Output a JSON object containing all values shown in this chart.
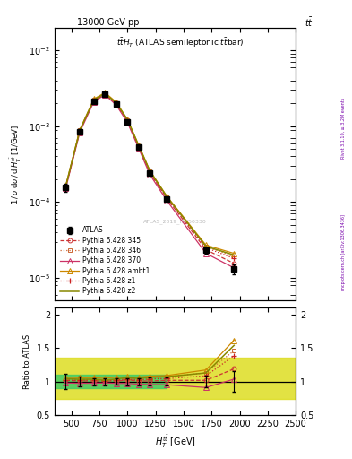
{
  "header_left": "13000 GeV pp",
  "header_right": "t$\\bar{t}$",
  "watermark": "ATLAS_2019_I1750330",
  "rivet_text": "Rivet 3.1.10, ≥ 3.2M events",
  "arxiv_text": "mcplots.cern.ch [arXiv:1306.3436]",
  "xlim": [
    350,
    2500
  ],
  "ylim_main": [
    5e-06,
    0.02
  ],
  "ylim_ratio": [
    0.5,
    2.1
  ],
  "x_data": [
    450,
    575,
    700,
    800,
    900,
    1000,
    1100,
    1200,
    1350,
    1700,
    1950
  ],
  "atlas_y": [
    0.000155,
    0.00085,
    0.00215,
    0.00265,
    0.00195,
    0.00115,
    0.00053,
    0.00024,
    0.00011,
    2.3e-05,
    1.3e-05
  ],
  "atlas_yerr": [
    1.8e-05,
    6e-05,
    0.00011,
    0.00014,
    9e-05,
    6e-05,
    2.8e-05,
    1.4e-05,
    6.5e-06,
    2e-06,
    2e-06
  ],
  "py345_y": [
    0.000158,
    0.00086,
    0.00218,
    0.00267,
    0.00197,
    0.00117,
    0.000535,
    0.000242,
    0.000112,
    2.35e-05,
    1.55e-05
  ],
  "py346_y": [
    0.000162,
    0.00088,
    0.00222,
    0.00272,
    0.00202,
    0.0012,
    0.00055,
    0.000255,
    0.000118,
    2.6e-05,
    1.9e-05
  ],
  "py370_y": [
    0.000152,
    0.00083,
    0.0021,
    0.0026,
    0.0019,
    0.00112,
    0.00051,
    0.00023,
    0.000105,
    2.1e-05,
    1.35e-05
  ],
  "pyambt1_y": [
    0.000165,
    0.0009,
    0.00228,
    0.00278,
    0.00208,
    0.00123,
    0.000565,
    0.00026,
    0.00012,
    2.7e-05,
    2.1e-05
  ],
  "pyz1_y": [
    0.000158,
    0.00087,
    0.0022,
    0.00268,
    0.002,
    0.00119,
    0.000542,
    0.00025,
    0.000115,
    2.5e-05,
    1.8e-05
  ],
  "pyz2_y": [
    0.000162,
    0.00088,
    0.00223,
    0.0027,
    0.00203,
    0.00122,
    0.000555,
    0.000256,
    0.000118,
    2.6e-05,
    2e-05
  ],
  "ratio_345": [
    1.02,
    1.01,
    1.01,
    1.01,
    1.01,
    1.02,
    1.01,
    1.01,
    1.02,
    1.02,
    1.19
  ],
  "ratio_346": [
    1.045,
    1.035,
    1.033,
    1.026,
    1.036,
    1.043,
    1.038,
    1.063,
    1.073,
    1.13,
    1.46
  ],
  "ratio_370": [
    0.98,
    0.976,
    0.977,
    0.981,
    0.974,
    0.974,
    0.962,
    0.958,
    0.955,
    0.913,
    1.038
  ],
  "ratio_ambt1": [
    1.065,
    1.059,
    1.06,
    1.049,
    1.067,
    1.07,
    1.066,
    1.083,
    1.09,
    1.174,
    1.615
  ],
  "ratio_z1": [
    1.02,
    1.024,
    1.023,
    1.011,
    1.026,
    1.035,
    1.023,
    1.042,
    1.045,
    1.087,
    1.385
  ],
  "ratio_z2": [
    1.045,
    1.035,
    1.037,
    1.019,
    1.041,
    1.061,
    1.047,
    1.067,
    1.073,
    1.13,
    1.538
  ],
  "color_345": "#cc3333",
  "color_346": "#cc6633",
  "color_370": "#cc3366",
  "color_ambt1": "#cc8800",
  "color_z1": "#cc2222",
  "color_z2": "#888800",
  "color_atlas": "#000000",
  "green_band_color": "#44cc66",
  "yellow_band_color": "#dddd22",
  "green_ylo": 0.9,
  "green_yhi": 1.1,
  "yellow_ylo": 0.75,
  "yellow_yhi": 1.35,
  "yellow_xhi": 2500
}
